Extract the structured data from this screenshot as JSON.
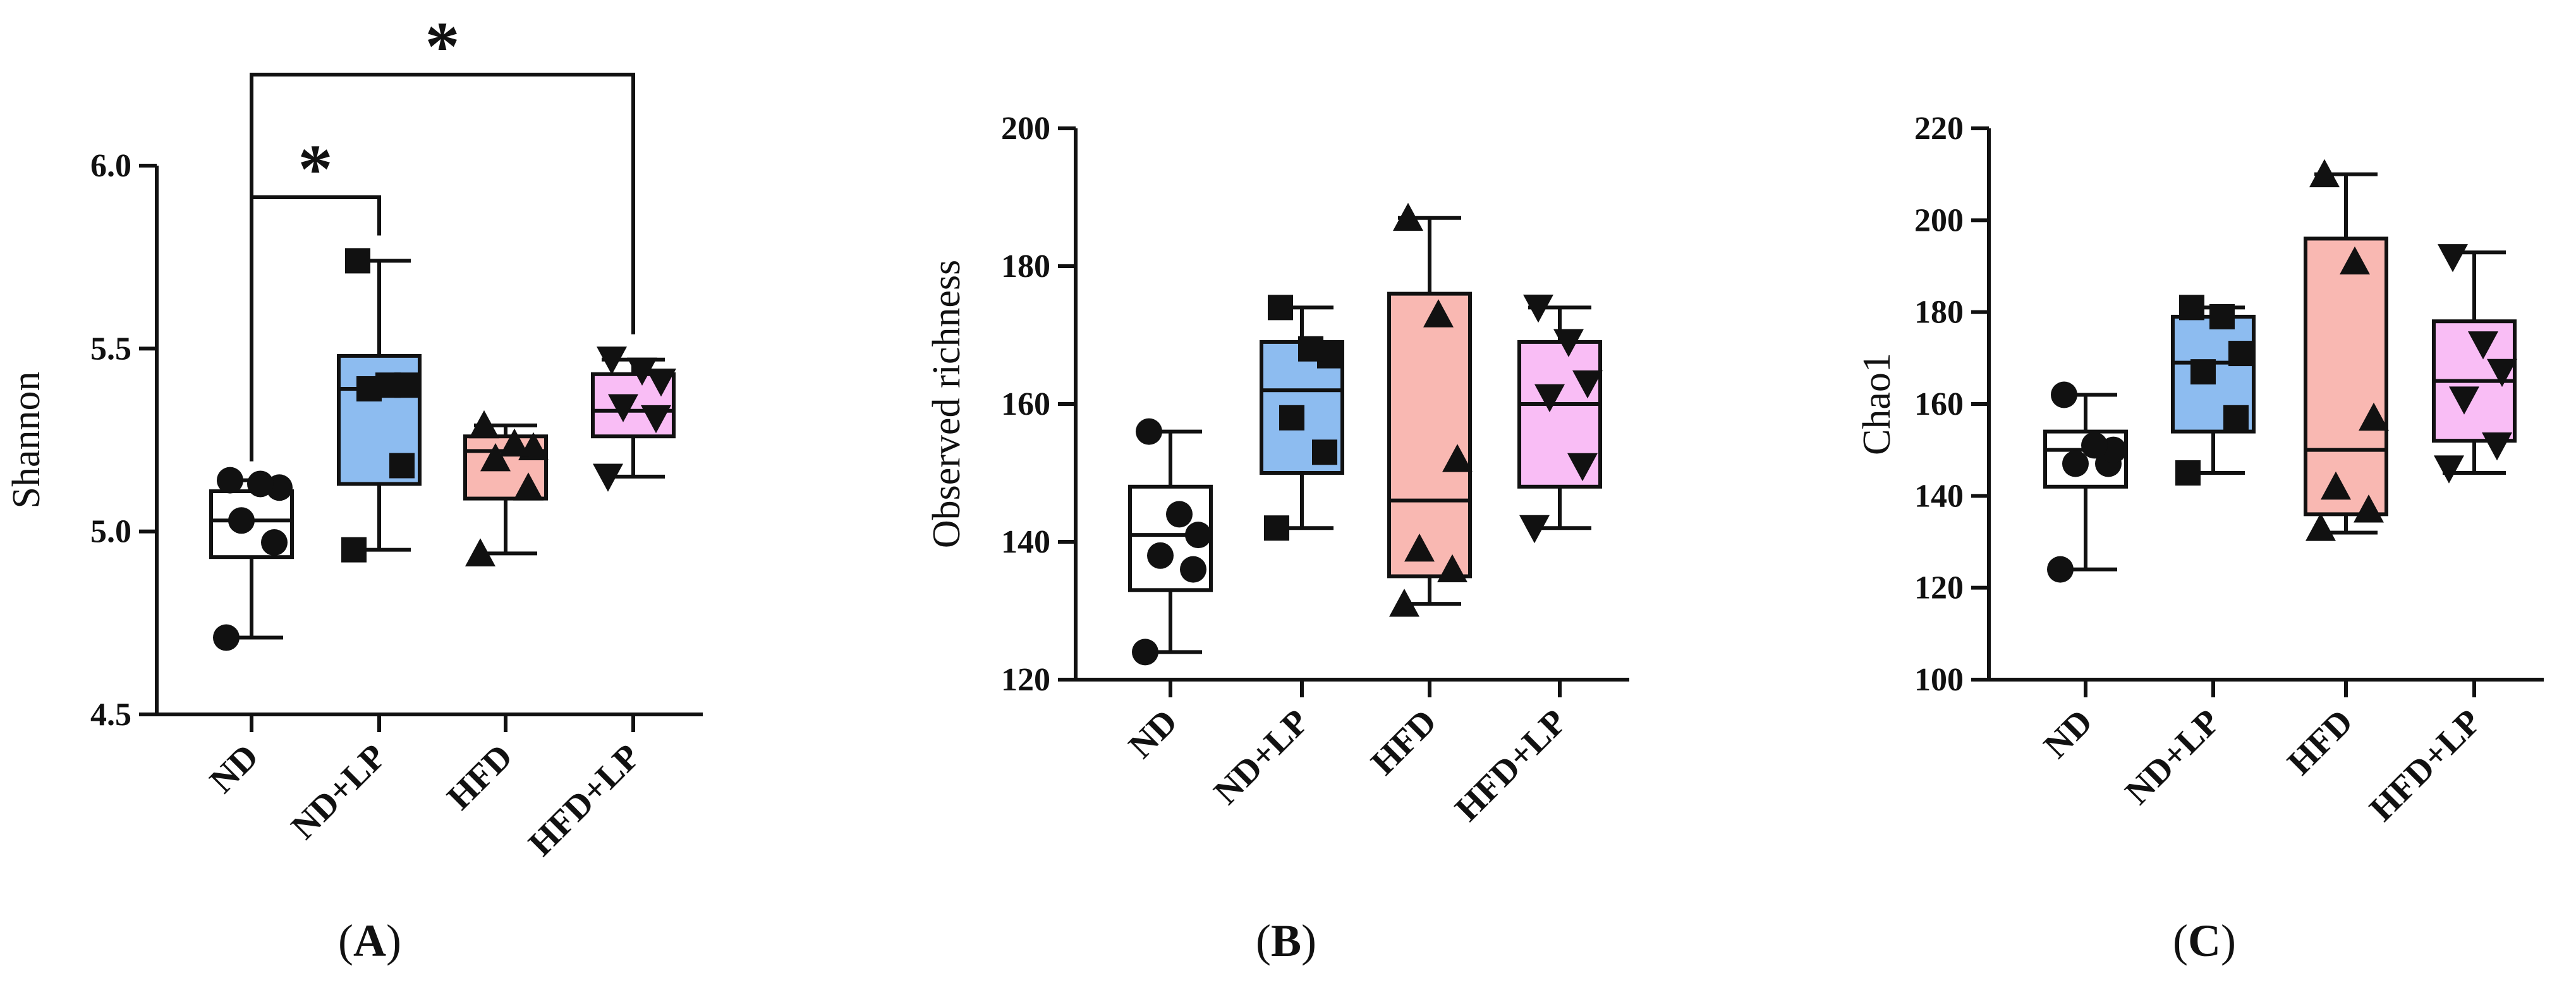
{
  "chart_data": [
    {
      "type": "box",
      "panel_label": "A",
      "ylabel": "Shannon",
      "ylim": [
        4.5,
        6.0
      ],
      "yticks": [
        4.5,
        5.0,
        5.5,
        6.0
      ],
      "ytick_labels": [
        "4.5",
        "5.0",
        "5.5",
        "6.0"
      ],
      "categories": [
        "ND",
        "ND+LP",
        "HFD",
        "HFD+LP"
      ],
      "groups": [
        {
          "name": "ND",
          "color": "#ffffff",
          "marker": "circle",
          "min": 4.71,
          "q1": 4.93,
          "median": 5.03,
          "q3": 5.11,
          "max": 5.14,
          "points": [
            4.71,
            4.97,
            5.03,
            5.12,
            5.13,
            5.14
          ]
        },
        {
          "name": "ND+LP",
          "color": "#8dbcf0",
          "marker": "square",
          "min": 4.95,
          "q1": 5.13,
          "median": 5.39,
          "q3": 5.48,
          "max": 5.74,
          "points": [
            4.95,
            5.18,
            5.39,
            5.4,
            5.4,
            5.74
          ]
        },
        {
          "name": "HFD",
          "color": "#f9b8b2",
          "marker": "triangle-up",
          "min": 4.94,
          "q1": 5.09,
          "median": 5.22,
          "q3": 5.26,
          "max": 5.29,
          "points": [
            4.94,
            5.12,
            5.2,
            5.23,
            5.24,
            5.29
          ]
        },
        {
          "name": "HFD+LP",
          "color": "#f9bdf5",
          "marker": "triangle-down",
          "min": 5.15,
          "q1": 5.26,
          "median": 5.33,
          "q3": 5.43,
          "max": 5.47,
          "points": [
            5.15,
            5.31,
            5.34,
            5.41,
            5.44,
            5.47
          ]
        }
      ],
      "significance": [
        {
          "from": "ND",
          "to": "ND+LP",
          "label": "*"
        },
        {
          "from": "ND",
          "to": "HFD+LP",
          "label": "*"
        }
      ]
    },
    {
      "type": "box",
      "panel_label": "B",
      "ylabel": "Observed richness",
      "ylim": [
        120,
        200
      ],
      "yticks": [
        120,
        140,
        160,
        180,
        200
      ],
      "ytick_labels": [
        "120",
        "140",
        "160",
        "180",
        "200"
      ],
      "categories": [
        "ND",
        "ND+LP",
        "HFD",
        "HFD+LP"
      ],
      "groups": [
        {
          "name": "ND",
          "color": "#ffffff",
          "marker": "circle",
          "min": 124,
          "q1": 133,
          "median": 141,
          "q3": 148,
          "max": 156,
          "points": [
            124,
            136,
            138,
            141,
            144,
            156
          ]
        },
        {
          "name": "ND+LP",
          "color": "#8dbcf0",
          "marker": "square",
          "min": 142,
          "q1": 150,
          "median": 162,
          "q3": 169,
          "max": 174,
          "points": [
            142,
            153,
            158,
            167,
            168,
            174
          ]
        },
        {
          "name": "HFD",
          "color": "#f9b8b2",
          "marker": "triangle-up",
          "min": 131,
          "q1": 135,
          "median": 146,
          "q3": 176,
          "max": 187,
          "points": [
            131,
            136,
            139,
            152,
            173,
            187
          ]
        },
        {
          "name": "HFD+LP",
          "color": "#f9bdf5",
          "marker": "triangle-down",
          "min": 142,
          "q1": 148,
          "median": 160,
          "q3": 169,
          "max": 174,
          "points": [
            142,
            151,
            161,
            163,
            169,
            174
          ]
        }
      ]
    },
    {
      "type": "box",
      "panel_label": "C",
      "ylabel": "Chao1",
      "ylim": [
        100,
        220
      ],
      "yticks": [
        100,
        120,
        140,
        160,
        180,
        200,
        220
      ],
      "ytick_labels": [
        "100",
        "120",
        "140",
        "160",
        "180",
        "200",
        "220"
      ],
      "categories": [
        "ND",
        "ND+LP",
        "HFD",
        "HFD+LP"
      ],
      "groups": [
        {
          "name": "ND",
          "color": "#ffffff",
          "marker": "circle",
          "min": 124,
          "q1": 142,
          "median": 150,
          "q3": 154,
          "max": 162,
          "points": [
            124,
            147,
            147,
            150,
            151,
            162
          ]
        },
        {
          "name": "ND+LP",
          "color": "#8dbcf0",
          "marker": "square",
          "min": 145,
          "q1": 154,
          "median": 169,
          "q3": 179,
          "max": 181,
          "points": [
            145,
            157,
            167,
            171,
            179,
            181
          ]
        },
        {
          "name": "HFD",
          "color": "#f9b8b2",
          "marker": "triangle-up",
          "min": 132,
          "q1": 136,
          "median": 150,
          "q3": 196,
          "max": 210,
          "points": [
            133,
            137,
            142,
            157,
            191,
            210
          ]
        },
        {
          "name": "HFD+LP",
          "color": "#f9bdf5",
          "marker": "triangle-down",
          "min": 145,
          "q1": 152,
          "median": 165,
          "q3": 178,
          "max": 193,
          "points": [
            146,
            151,
            161,
            167,
            173,
            192
          ]
        }
      ]
    }
  ]
}
